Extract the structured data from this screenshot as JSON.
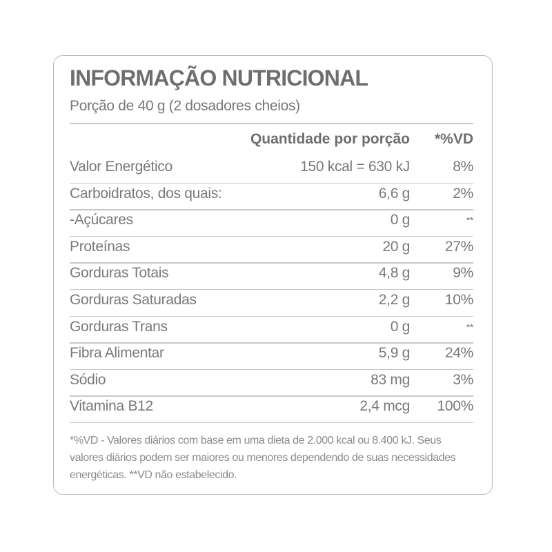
{
  "title": "INFORMAÇÃO NUTRICIONAL",
  "serving": "Porção de 40 g (2 dosadores cheios)",
  "header": {
    "amount": "Quantidade por porção",
    "vd": "*%VD"
  },
  "rows": [
    {
      "label": "Valor Energético",
      "amount": "150 kcal = 630 kJ",
      "vd": "8%"
    },
    {
      "label": "Carboidratos, dos quais:",
      "amount": "6,6 g",
      "vd": "2%"
    },
    {
      "label": "-Açúcares",
      "amount": "0 g",
      "vd": "**"
    },
    {
      "label": "Proteínas",
      "amount": "20 g",
      "vd": "27%"
    },
    {
      "label": "Gorduras Totais",
      "amount": "4,8 g",
      "vd": "9%"
    },
    {
      "label": "Gorduras Saturadas",
      "amount": "2,2 g",
      "vd": "10%"
    },
    {
      "label": "Gorduras Trans",
      "amount": "0 g",
      "vd": "**"
    },
    {
      "label": "Fibra Alimentar",
      "amount": "5,9 g",
      "vd": "24%"
    },
    {
      "label": "Sódio",
      "amount": "83 mg",
      "vd": "3%"
    },
    {
      "label": "Vitamina B12",
      "amount": "2,4 mcg",
      "vd": "100%"
    }
  ],
  "footnote": "*%VD - Valores diários com base em uma dieta de 2.000 kcal ou 8.400 kJ. Seus valores diários podem ser maiores ou menores dependendo de suas necessidades energéticas. **VD não estabelecido."
}
